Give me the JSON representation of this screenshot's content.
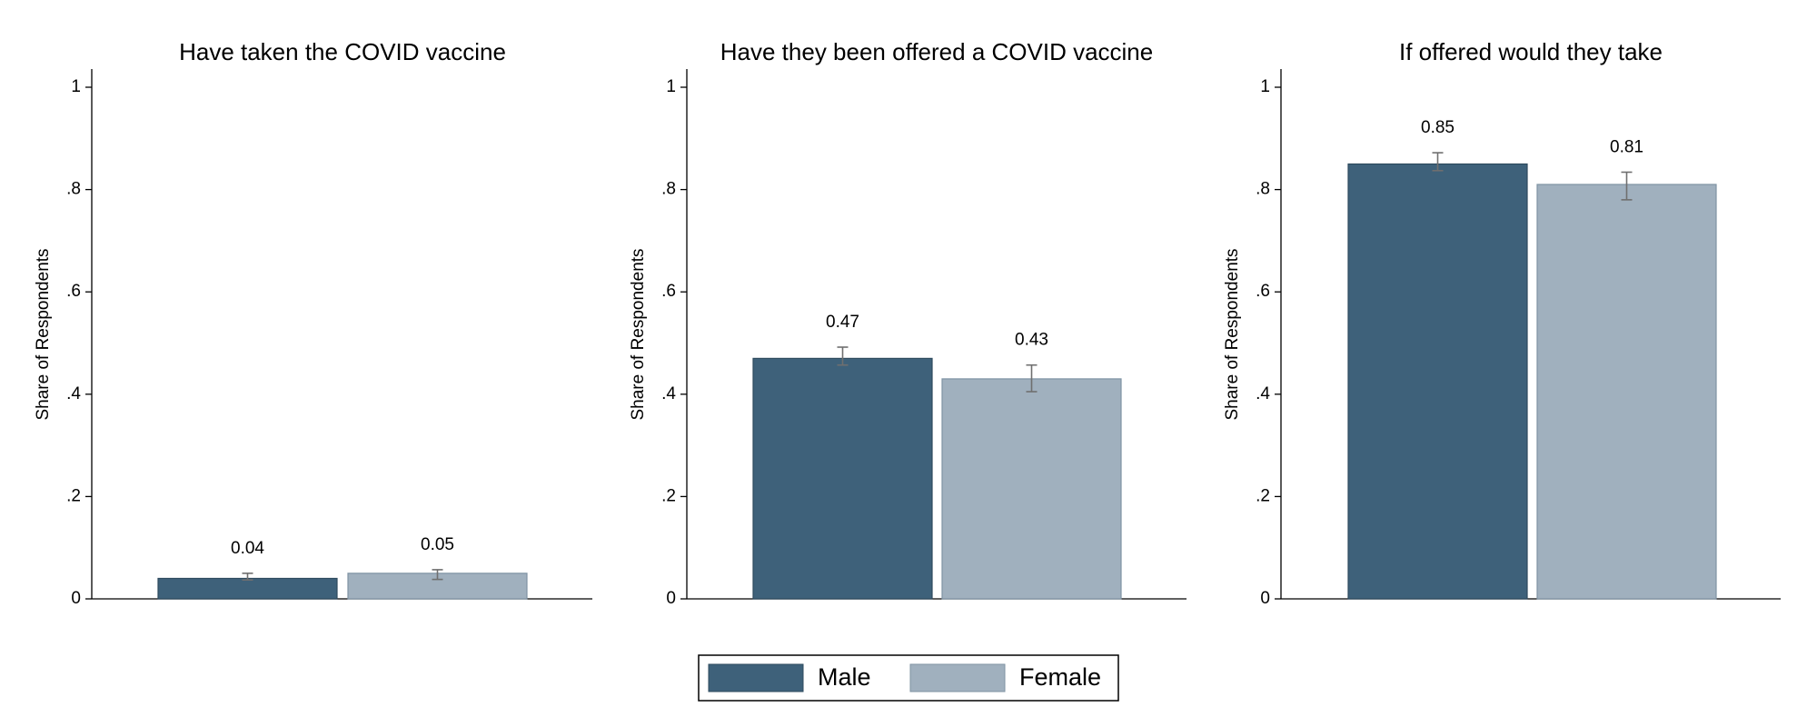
{
  "chart_data": {
    "type": "bar",
    "colors": {
      "Male": "#3e617a",
      "Female": "#a0b0be"
    },
    "legend": {
      "placement": "bottom-center",
      "entries": [
        "Male",
        "Female"
      ]
    },
    "panels": [
      {
        "title": "Have taken the COVID vaccine",
        "ylabel": "Share of Respondents",
        "ylim": [
          0,
          1
        ],
        "yticks": [
          0,
          0.2,
          0.4,
          0.6,
          0.8,
          1
        ],
        "ytick_labels": [
          "0",
          ".2",
          ".4",
          ".6",
          ".8",
          "1"
        ],
        "series": [
          {
            "name": "Male",
            "value": 0.04,
            "label": "0.04",
            "ci": [
              0.037,
              0.05
            ]
          },
          {
            "name": "Female",
            "value": 0.05,
            "label": "0.05",
            "ci": [
              0.038,
              0.057
            ]
          }
        ]
      },
      {
        "title": "Have they been offered a COVID vaccine",
        "ylabel": "Share of Respondents",
        "ylim": [
          0,
          1
        ],
        "yticks": [
          0,
          0.2,
          0.4,
          0.6,
          0.8,
          1
        ],
        "ytick_labels": [
          "0",
          ".2",
          ".4",
          ".6",
          ".8",
          "1"
        ],
        "series": [
          {
            "name": "Male",
            "value": 0.47,
            "label": "0.47",
            "ci": [
              0.457,
              0.492
            ]
          },
          {
            "name": "Female",
            "value": 0.43,
            "label": "0.43",
            "ci": [
              0.405,
              0.457
            ]
          }
        ]
      },
      {
        "title": "If offered would they take",
        "ylabel": "Share of Respondents",
        "ylim": [
          0,
          1
        ],
        "yticks": [
          0,
          0.2,
          0.4,
          0.6,
          0.8,
          1
        ],
        "ytick_labels": [
          "0",
          ".2",
          ".4",
          ".6",
          ".8",
          "1"
        ],
        "series": [
          {
            "name": "Male",
            "value": 0.85,
            "label": "0.85",
            "ci": [
              0.837,
              0.872
            ]
          },
          {
            "name": "Female",
            "value": 0.81,
            "label": "0.81",
            "ci": [
              0.78,
              0.834
            ]
          }
        ]
      }
    ]
  }
}
